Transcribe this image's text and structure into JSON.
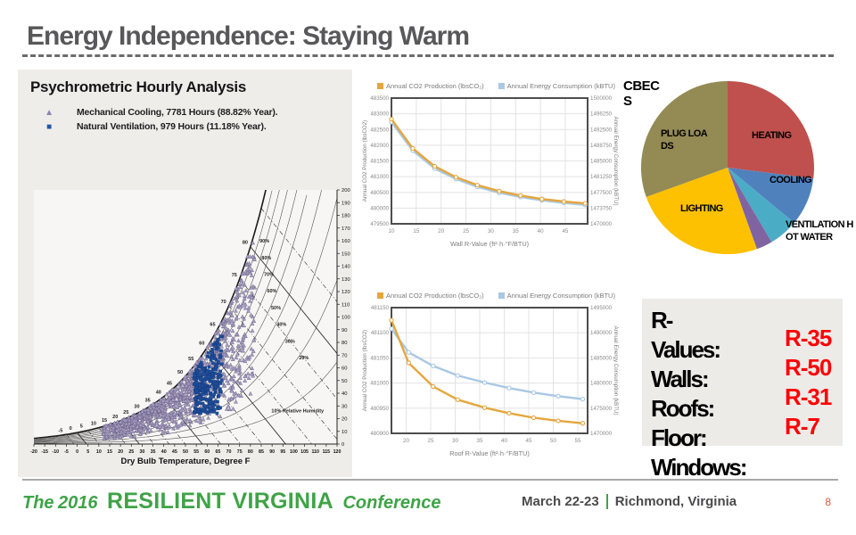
{
  "slide": {
    "title": "Energy Independence: Staying Warm",
    "page_number": "8"
  },
  "footer": {
    "brand_the": "The",
    "brand_year": "2016",
    "brand_name": "RESILIENT VIRGINIA",
    "brand_suffix": "Conference",
    "date": "March 22-23",
    "separator": "|",
    "location": "Richmond, Virginia"
  },
  "colors": {
    "accent_green": "#3fa347",
    "title_gray": "#58585a",
    "rvalue_red": "#ff0000",
    "panel_gray": "#efedea",
    "chart_border": "#4d4d4d"
  },
  "rvalues": {
    "title": "R-Values:",
    "rows": [
      {
        "label": "Walls:",
        "value": "R-35"
      },
      {
        "label": "Roofs:",
        "value": "R-50"
      },
      {
        "label": "Floor:",
        "value": "R-31"
      },
      {
        "label": "Windows:",
        "value": "R-7"
      }
    ]
  },
  "chart_data": [
    {
      "id": "psychrometric",
      "type": "scatter",
      "title": "Psychrometric Hourly Analysis",
      "xlabel": "Dry Bulb Temperature, Degree F",
      "xlim": [
        -20,
        120
      ],
      "x_tick_step": 5,
      "ylim_right": [
        0,
        200
      ],
      "y_tick_step": 10,
      "legend": [
        {
          "label": "Mechanical Cooling, 7781 Hours (88.82% Year).",
          "marker": "triangle",
          "color": "#a89fc0",
          "hours": 7781,
          "percent_of_year": 88.82
        },
        {
          "label": "Natural Ventilation, 979 Hours (11.18% Year).",
          "marker": "square",
          "color": "#1e4e9d",
          "hours": 979,
          "percent_of_year": 11.18
        }
      ],
      "rh_labels": [
        "90%",
        "80%",
        "70%",
        "60%",
        "50%",
        "40%",
        "30%",
        "20%"
      ],
      "rh_annotation": "10% Relative Humidity",
      "saturation_labels": [
        -5,
        0,
        5,
        10,
        15,
        20,
        25,
        30,
        35,
        40,
        45,
        50,
        55,
        60,
        65,
        70,
        75,
        80
      ]
    },
    {
      "id": "wall-rvalue",
      "type": "line",
      "xlabel": "Wall R-Value (ft²·h·°F/BTU)",
      "ylabel_left": "Annual CO2 Production (lbsCO2)",
      "ylabel_right": "Annual Energy Consumption (kBTU)",
      "xlim": [
        10,
        49.5
      ],
      "xticks": [
        10,
        15,
        20,
        25,
        30,
        35,
        40,
        45
      ],
      "yleft": {
        "min": 479500,
        "max": 483500,
        "step": 500
      },
      "yright": {
        "min": 1470000,
        "max": 1500000,
        "step": 3750
      },
      "x": [
        10,
        14.3,
        18.7,
        23,
        27.3,
        31.7,
        36,
        40.3,
        44.7,
        49
      ],
      "series": [
        {
          "name": "Annual CO2 Production (lbsCO₂)",
          "axis": "left",
          "color": "#e5a63c",
          "values": [
            482830,
            481900,
            481330,
            480980,
            480730,
            480540,
            480400,
            480290,
            480210,
            480150
          ]
        },
        {
          "name": "Annual Energy Consumption (kBTU)",
          "axis": "right",
          "color": "#a9c8e4",
          "values": [
            1494300,
            1487500,
            1483200,
            1480700,
            1478800,
            1477400,
            1476400,
            1475600,
            1475000,
            1474500
          ]
        }
      ]
    },
    {
      "id": "roof-rvalue",
      "type": "line",
      "xlabel": "Roof R-Value (ft²·h·°F/BTU)",
      "ylabel_left": "Annual CO2 Production (lbsCO2)",
      "ylabel_right": "Annual Energy Consumption (kBTU)",
      "xlim": [
        17,
        57
      ],
      "xticks": [
        20,
        25,
        30,
        35,
        40,
        45,
        50,
        55
      ],
      "yleft": {
        "min": 480900,
        "max": 481150,
        "step": 50
      },
      "yright": {
        "min": 1470000,
        "max": 1495000,
        "step": 5000
      },
      "x": [
        17,
        20.5,
        25.5,
        30.5,
        36,
        41,
        46,
        51,
        56
      ],
      "series": [
        {
          "name": "Annual CO2 Production (lbsCO₂)",
          "axis": "left",
          "color": "#e5a63c",
          "values": [
            481125,
            481040,
            480993,
            480967,
            480951,
            480940,
            480931,
            480925,
            480920
          ]
        },
        {
          "name": "Annual Energy Consumption (kBTU)",
          "axis": "right",
          "color": "#a9c8e4",
          "values": [
            1490800,
            1486100,
            1483400,
            1481500,
            1480100,
            1479000,
            1478100,
            1477400,
            1476800
          ]
        }
      ]
    },
    {
      "id": "cbecs",
      "type": "pie",
      "title": "CBECS",
      "slices": [
        {
          "label": "HEATING",
          "value": 27,
          "color": "#c0504d"
        },
        {
          "label": "COOLING",
          "value": 9,
          "color": "#4f81bd"
        },
        {
          "label": "VENTILATION",
          "value": 5.5,
          "color": "#4bacc6"
        },
        {
          "label": "HOT WATER",
          "value": 3,
          "color": "#8064a2"
        },
        {
          "label": "LIGHTING",
          "value": 25,
          "color": "#fdc101"
        },
        {
          "label": "PLUG LOADS",
          "value": 30.5,
          "color": "#948a54"
        }
      ]
    }
  ]
}
